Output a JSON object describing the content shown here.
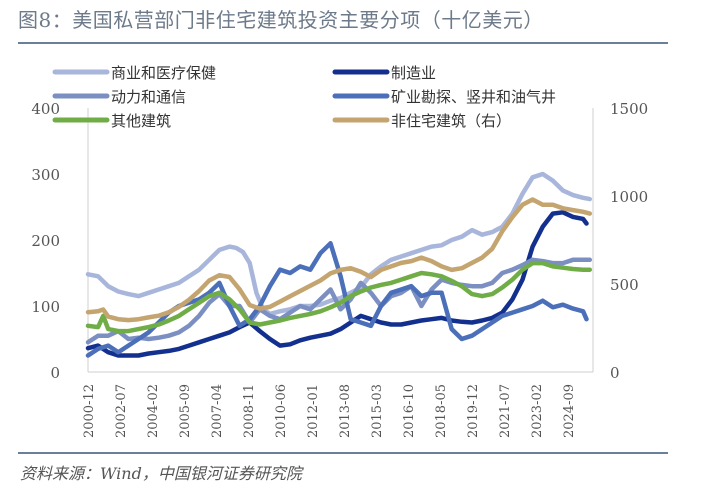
{
  "title": "图8：美国私营部门非住宅建筑投资主要分项（十亿美元）",
  "source": "资料来源：Wind，中国银河证券研究院",
  "chart_data": {
    "type": "line",
    "title": "美国私营部门非住宅建筑投资主要分项（十亿美元）",
    "xlabel": "",
    "ylabel": "",
    "x_start": "2000-12",
    "x_ticks": [
      "2000-12",
      "2002-07",
      "2004-02",
      "2005-09",
      "2007-04",
      "2008-11",
      "2010-06",
      "2012-01",
      "2013-08",
      "2015-03",
      "2016-10",
      "2018-05",
      "2019-12",
      "2021-07",
      "2023-02",
      "2024-09"
    ],
    "y_left": {
      "range": [
        0,
        400
      ],
      "ticks": [
        0,
        100,
        200,
        300,
        400
      ]
    },
    "y_right": {
      "range": [
        0,
        1500
      ],
      "ticks": [
        0,
        500,
        1000,
        1500
      ]
    },
    "grid": false,
    "legend_position": "top",
    "series": [
      {
        "name": "商业和医疗保健",
        "axis": "left",
        "color": "#a9b6dc",
        "x": [
          0,
          6,
          12,
          18,
          24,
          30,
          36,
          42,
          48,
          54,
          60,
          66,
          72,
          78,
          84,
          88,
          92,
          96,
          100,
          104,
          108,
          114,
          120,
          126,
          132,
          138,
          144,
          150,
          156,
          162,
          168,
          174,
          180,
          186,
          192,
          198,
          204,
          210,
          216,
          222,
          228,
          234,
          240,
          246,
          252,
          258,
          264,
          270,
          276,
          282,
          288,
          294,
          298
        ],
        "values": [
          148,
          145,
          130,
          122,
          118,
          115,
          120,
          125,
          130,
          135,
          145,
          155,
          170,
          185,
          190,
          188,
          182,
          165,
          120,
          95,
          88,
          92,
          95,
          100,
          100,
          102,
          108,
          112,
          120,
          128,
          148,
          160,
          170,
          175,
          180,
          185,
          190,
          192,
          200,
          205,
          215,
          208,
          212,
          220,
          240,
          270,
          295,
          300,
          290,
          275,
          268,
          264,
          262
        ]
      },
      {
        "name": "制造业",
        "axis": "left",
        "color": "#13308f",
        "x": [
          0,
          6,
          12,
          18,
          24,
          30,
          36,
          42,
          48,
          54,
          60,
          66,
          72,
          78,
          84,
          90,
          96,
          102,
          108,
          114,
          120,
          126,
          132,
          138,
          144,
          150,
          156,
          162,
          168,
          174,
          180,
          186,
          192,
          198,
          204,
          210,
          216,
          222,
          228,
          234,
          240,
          246,
          252,
          258,
          264,
          270,
          276,
          282,
          288,
          294,
          296
        ],
        "values": [
          36,
          40,
          30,
          25,
          25,
          25,
          28,
          30,
          32,
          35,
          40,
          45,
          50,
          55,
          60,
          68,
          75,
          62,
          50,
          40,
          42,
          48,
          52,
          55,
          58,
          65,
          75,
          85,
          80,
          75,
          72,
          72,
          75,
          78,
          80,
          82,
          78,
          76,
          75,
          78,
          82,
          90,
          110,
          140,
          190,
          220,
          240,
          242,
          235,
          232,
          225
        ]
      },
      {
        "name": "动力和通信",
        "axis": "left",
        "color": "#7b8fc2",
        "x": [
          0,
          6,
          12,
          18,
          24,
          30,
          36,
          42,
          48,
          54,
          60,
          66,
          72,
          78,
          84,
          90,
          96,
          102,
          108,
          114,
          120,
          126,
          132,
          138,
          144,
          150,
          156,
          162,
          168,
          174,
          180,
          186,
          192,
          198,
          204,
          210,
          216,
          222,
          228,
          234,
          240,
          246,
          252,
          258,
          264,
          270,
          276,
          282,
          288,
          294,
          298
        ],
        "values": [
          45,
          55,
          55,
          62,
          50,
          52,
          50,
          52,
          55,
          60,
          70,
          85,
          105,
          118,
          100,
          100,
          75,
          95,
          85,
          80,
          90,
          100,
          95,
          110,
          125,
          95,
          110,
          135,
          120,
          100,
          115,
          120,
          130,
          100,
          125,
          140,
          135,
          132,
          130,
          130,
          135,
          150,
          155,
          162,
          170,
          168,
          165,
          165,
          170,
          170,
          170
        ]
      },
      {
        "name": "矿业勘探、竖井和油气井",
        "axis": "left",
        "color": "#4b6fb8",
        "x": [
          0,
          6,
          12,
          18,
          24,
          30,
          36,
          42,
          48,
          54,
          60,
          66,
          72,
          78,
          84,
          90,
          96,
          102,
          108,
          114,
          120,
          126,
          132,
          138,
          144,
          150,
          156,
          162,
          168,
          174,
          180,
          186,
          192,
          198,
          204,
          210,
          216,
          222,
          228,
          234,
          240,
          246,
          252,
          258,
          264,
          270,
          276,
          282,
          288,
          294,
          296
        ],
        "values": [
          25,
          35,
          40,
          30,
          40,
          50,
          60,
          75,
          90,
          100,
          105,
          110,
          120,
          135,
          100,
          70,
          80,
          100,
          130,
          155,
          150,
          160,
          155,
          180,
          195,
          145,
          80,
          75,
          70,
          100,
          120,
          125,
          130,
          115,
          120,
          120,
          65,
          50,
          55,
          65,
          75,
          85,
          90,
          95,
          100,
          108,
          98,
          102,
          96,
          92,
          80
        ]
      },
      {
        "name": "其他建筑",
        "axis": "left",
        "color": "#70ad47",
        "x": [
          0,
          6,
          9,
          12,
          18,
          24,
          30,
          36,
          42,
          48,
          54,
          60,
          66,
          72,
          78,
          84,
          90,
          96,
          102,
          108,
          114,
          120,
          126,
          132,
          138,
          144,
          150,
          156,
          162,
          168,
          174,
          180,
          186,
          192,
          198,
          204,
          210,
          216,
          222,
          228,
          234,
          240,
          246,
          252,
          258,
          264,
          270,
          276,
          282,
          288,
          294,
          298
        ],
        "values": [
          70,
          68,
          85,
          65,
          62,
          62,
          65,
          68,
          72,
          78,
          85,
          95,
          105,
          115,
          120,
          110,
          95,
          75,
          72,
          75,
          78,
          82,
          85,
          88,
          92,
          98,
          105,
          115,
          122,
          128,
          132,
          135,
          140,
          145,
          150,
          148,
          145,
          138,
          130,
          118,
          115,
          118,
          128,
          140,
          155,
          165,
          165,
          160,
          158,
          156,
          155,
          155
        ]
      },
      {
        "name": "非住宅建筑（右）",
        "axis": "right",
        "color": "#c4a46f",
        "x": [
          0,
          6,
          9,
          12,
          18,
          24,
          30,
          36,
          42,
          48,
          54,
          60,
          66,
          72,
          78,
          84,
          90,
          96,
          102,
          108,
          114,
          120,
          126,
          132,
          138,
          144,
          150,
          156,
          162,
          168,
          174,
          180,
          186,
          192,
          198,
          204,
          210,
          216,
          222,
          228,
          234,
          240,
          246,
          252,
          258,
          264,
          270,
          276,
          282,
          288,
          294,
          298
        ],
        "values": [
          340,
          345,
          355,
          315,
          300,
          295,
          300,
          310,
          320,
          340,
          370,
          410,
          460,
          520,
          550,
          540,
          470,
          380,
          360,
          370,
          400,
          430,
          460,
          490,
          520,
          560,
          580,
          590,
          570,
          540,
          580,
          600,
          620,
          630,
          650,
          630,
          600,
          580,
          590,
          620,
          650,
          700,
          800,
          880,
          950,
          980,
          950,
          950,
          930,
          920,
          910,
          900
        ]
      }
    ]
  }
}
